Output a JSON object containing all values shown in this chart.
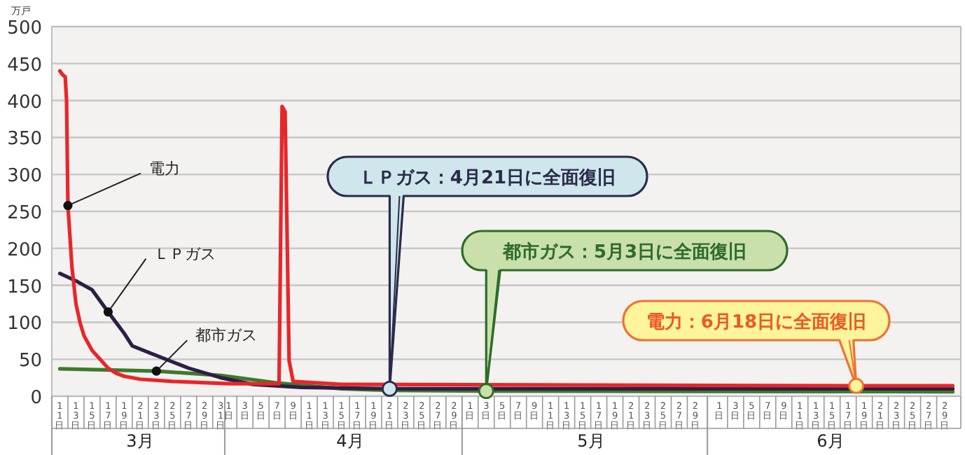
{
  "chart_data": {
    "type": "line",
    "ylabel": "万戸",
    "ylim": [
      0,
      500
    ],
    "yticks": [
      0,
      50,
      100,
      150,
      200,
      250,
      300,
      350,
      400,
      450,
      500
    ],
    "grid": "y",
    "marker": "none",
    "line_style": "solid",
    "xlim": [
      "--03-10",
      "--07-01"
    ],
    "xticks": [
      {
        "value": "--03-11",
        "label": "11日"
      },
      {
        "value": "--03-13",
        "label": "13日"
      },
      {
        "value": "--03-15",
        "label": "15日"
      },
      {
        "value": "--03-17",
        "label": "17日"
      },
      {
        "value": "--03-19",
        "label": "19日"
      },
      {
        "value": "--03-21",
        "label": "21日"
      },
      {
        "value": "--03-23",
        "label": "23日"
      },
      {
        "value": "--03-25",
        "label": "25日"
      },
      {
        "value": "--03-27",
        "label": "27日"
      },
      {
        "value": "--03-29",
        "label": "29日"
      },
      {
        "value": "--03-31",
        "label": "31日"
      },
      {
        "value": "--04-01",
        "label": "1日"
      },
      {
        "value": "--04-03",
        "label": "3日"
      },
      {
        "value": "--04-05",
        "label": "5日"
      },
      {
        "value": "--04-07",
        "label": "7日"
      },
      {
        "value": "--04-09",
        "label": "9日"
      },
      {
        "value": "--04-11",
        "label": "11日"
      },
      {
        "value": "--04-13",
        "label": "13日"
      },
      {
        "value": "--04-15",
        "label": "15日"
      },
      {
        "value": "--04-17",
        "label": "17日"
      },
      {
        "value": "--04-19",
        "label": "19日"
      },
      {
        "value": "--04-21",
        "label": "21日"
      },
      {
        "value": "--04-23",
        "label": "23日"
      },
      {
        "value": "--04-25",
        "label": "25日"
      },
      {
        "value": "--04-27",
        "label": "27日"
      },
      {
        "value": "--04-29",
        "label": "29日"
      },
      {
        "value": "--05-01",
        "label": "1日"
      },
      {
        "value": "--05-03",
        "label": "3日"
      },
      {
        "value": "--05-05",
        "label": "5日"
      },
      {
        "value": "--05-07",
        "label": "7日"
      },
      {
        "value": "--05-09",
        "label": "9日"
      },
      {
        "value": "--05-11",
        "label": "11日"
      },
      {
        "value": "--05-13",
        "label": "13日"
      },
      {
        "value": "--05-15",
        "label": "15日"
      },
      {
        "value": "--05-17",
        "label": "17日"
      },
      {
        "value": "--05-19",
        "label": "19日"
      },
      {
        "value": "--05-21",
        "label": "21日"
      },
      {
        "value": "--05-23",
        "label": "23日"
      },
      {
        "value": "--05-25",
        "label": "25日"
      },
      {
        "value": "--05-27",
        "label": "27日"
      },
      {
        "value": "--05-29",
        "label": "29日"
      },
      {
        "value": "--06-01",
        "label": "1日"
      },
      {
        "value": "--06-03",
        "label": "3日"
      },
      {
        "value": "--06-05",
        "label": "5日"
      },
      {
        "value": "--06-07",
        "label": "7日"
      },
      {
        "value": "--06-09",
        "label": "9日"
      },
      {
        "value": "--06-11",
        "label": "11日"
      },
      {
        "value": "--06-13",
        "label": "13日"
      },
      {
        "value": "--06-15",
        "label": "15日"
      },
      {
        "value": "--06-17",
        "label": "17日"
      },
      {
        "value": "--06-19",
        "label": "19日"
      },
      {
        "value": "--06-21",
        "label": "21日"
      },
      {
        "value": "--06-23",
        "label": "23日"
      },
      {
        "value": "--06-25",
        "label": "25日"
      },
      {
        "value": "--06-27",
        "label": "27日"
      },
      {
        "value": "--06-29",
        "label": "29日"
      }
    ],
    "series": [
      {
        "color": "#3d7a2c",
        "x": [
          "--03-11",
          "--03-23",
          "--03-31",
          "--04-07",
          "--04-15",
          "--04-21",
          "--05-03",
          "--06-30"
        ],
        "values": [
          37,
          34,
          28,
          18,
          10,
          8,
          7,
          6
        ]
      },
      {
        "color": "#2e1f45",
        "x": [
          "--03-11",
          "--03-13",
          "--03-15",
          "--03-17",
          "--03-19",
          "--03-20",
          "--03-23",
          "--03-27",
          "--03-31",
          "--04-04",
          "--04-10",
          "--04-21",
          "--06-30"
        ],
        "values": [
          166,
          156,
          144,
          114,
          85,
          68,
          55,
          38,
          25,
          16,
          12,
          10,
          10
        ]
      },
      {
        "color": "#e8262a",
        "x": [
          "--03-11",
          "--03-11T08:00",
          "--03-11T16:00",
          "--03-11T20:00",
          "--03-12",
          "--03-12T12:00",
          "--03-13",
          "--03-13T12:00",
          "--03-14",
          "--03-15",
          "--03-16",
          "--03-17",
          "--03-18",
          "--03-19",
          "--03-21",
          "--03-25",
          "--04-01",
          "--04-07T06:00",
          "--04-07T15:00",
          "--04-08",
          "--04-08T12:00",
          "--04-09",
          "--04-15",
          "--06-18",
          "--06-30"
        ],
        "values": [
          440,
          435,
          432,
          400,
          258,
          175,
          125,
          100,
          82,
          62,
          50,
          38,
          31,
          27,
          23,
          20,
          17,
          17,
          392,
          385,
          48,
          20,
          16,
          14,
          14
        ]
      }
    ],
    "annotations": [
      {
        "text": "電力",
        "x": "--03-12",
        "y": 258
      },
      {
        "text": "ＬＰガス",
        "x": "--03-17",
        "y": 114
      },
      {
        "text": "都市ガス",
        "x": "--03-23",
        "y": 34
      },
      {
        "text": "ＬＰガス：4月21日に全面復旧",
        "x": "--04-21",
        "y": 10
      },
      {
        "text": "都市ガス：5月3日に全面復旧",
        "x": "--05-03",
        "y": 7
      },
      {
        "text": "電力：6月18日に全面復旧",
        "x": "--06-18",
        "y": 14
      },
      "3月",
      "4月",
      "5月",
      "6月"
    ]
  }
}
